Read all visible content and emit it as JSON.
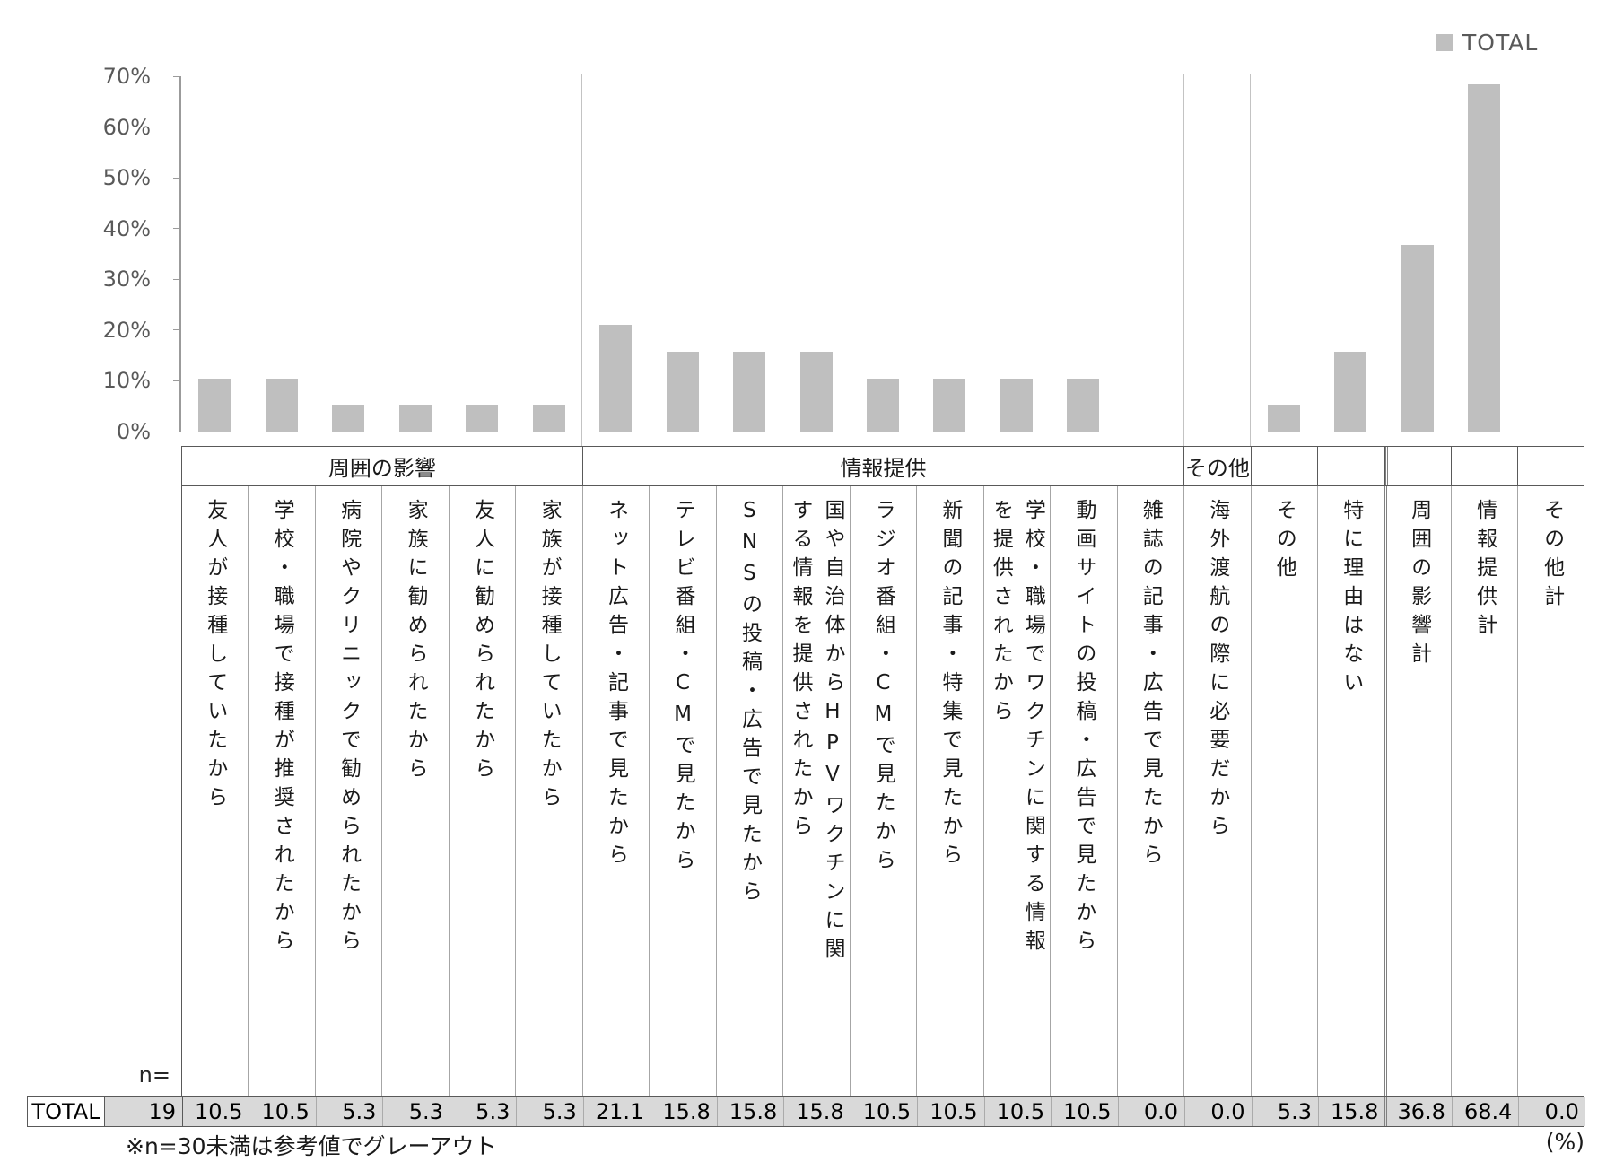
{
  "legend": {
    "label": "TOTAL",
    "swatch_color": "#bfbfbf"
  },
  "y_axis": {
    "tick_labels": [
      "0%",
      "10%",
      "20%",
      "30%",
      "40%",
      "50%",
      "60%",
      "70%"
    ],
    "min": 0,
    "max": 70,
    "step": 10
  },
  "table": {
    "row_header": "TOTAL",
    "n_label": "n=",
    "footnote": "※n=30未満は参考値でグレーアウト",
    "unit_note": "(%)"
  },
  "chart_data": {
    "type": "bar",
    "title": "",
    "xlabel": "",
    "ylabel": "",
    "ylim": [
      0,
      70
    ],
    "grid": false,
    "legend_position": "top-right",
    "series_name": "TOTAL",
    "n": 19,
    "bar_color": "#bfbfbf",
    "groups": [
      {
        "label": "周囲の影響",
        "span": 6
      },
      {
        "label": "情報提供",
        "span": 9
      },
      {
        "label": "その他",
        "span": 1
      },
      {
        "label": "",
        "span": 1
      },
      {
        "label": "",
        "span": 1
      },
      {
        "label": "",
        "span": 1
      },
      {
        "label": "",
        "span": 1
      },
      {
        "label": "",
        "span": 1
      }
    ],
    "categories": [
      "友人が接種していたから",
      "学校・職場で接種が推奨されたから",
      "病院やクリニックで勧められたから",
      "家族に勧められたから",
      "友人に勧められたから",
      "家族が接種していたから",
      "ネット広告・記事で見たから",
      "テレビ番組・CMで見たから",
      "SNSの投稿・広告で見たから",
      "国や自治体からHPVワクチンに関する情報を提供されたから",
      "ラジオ番組・CMで見たから",
      "新聞の記事・特集で見たから",
      "学校・職場でワクチンに関する情報を提供されたから",
      "動画サイトの投稿・広告で見たから",
      "雑誌の記事・広告で見たから",
      "海外渡航の際に必要だから",
      "その他",
      "特に理由はない",
      "周囲の影響計",
      "情報提供計",
      "その他計"
    ],
    "values": [
      10.5,
      10.5,
      5.3,
      5.3,
      5.3,
      5.3,
      21.1,
      15.8,
      15.8,
      15.8,
      10.5,
      10.5,
      10.5,
      10.5,
      0.0,
      0.0,
      5.3,
      15.8,
      36.8,
      68.4,
      0.0
    ],
    "label_wrap_after_chars": {
      "9": 16,
      "12": 16
    },
    "group_dividers_after_col": [
      6,
      15,
      16,
      18
    ],
    "double_border_after_col": 18
  }
}
